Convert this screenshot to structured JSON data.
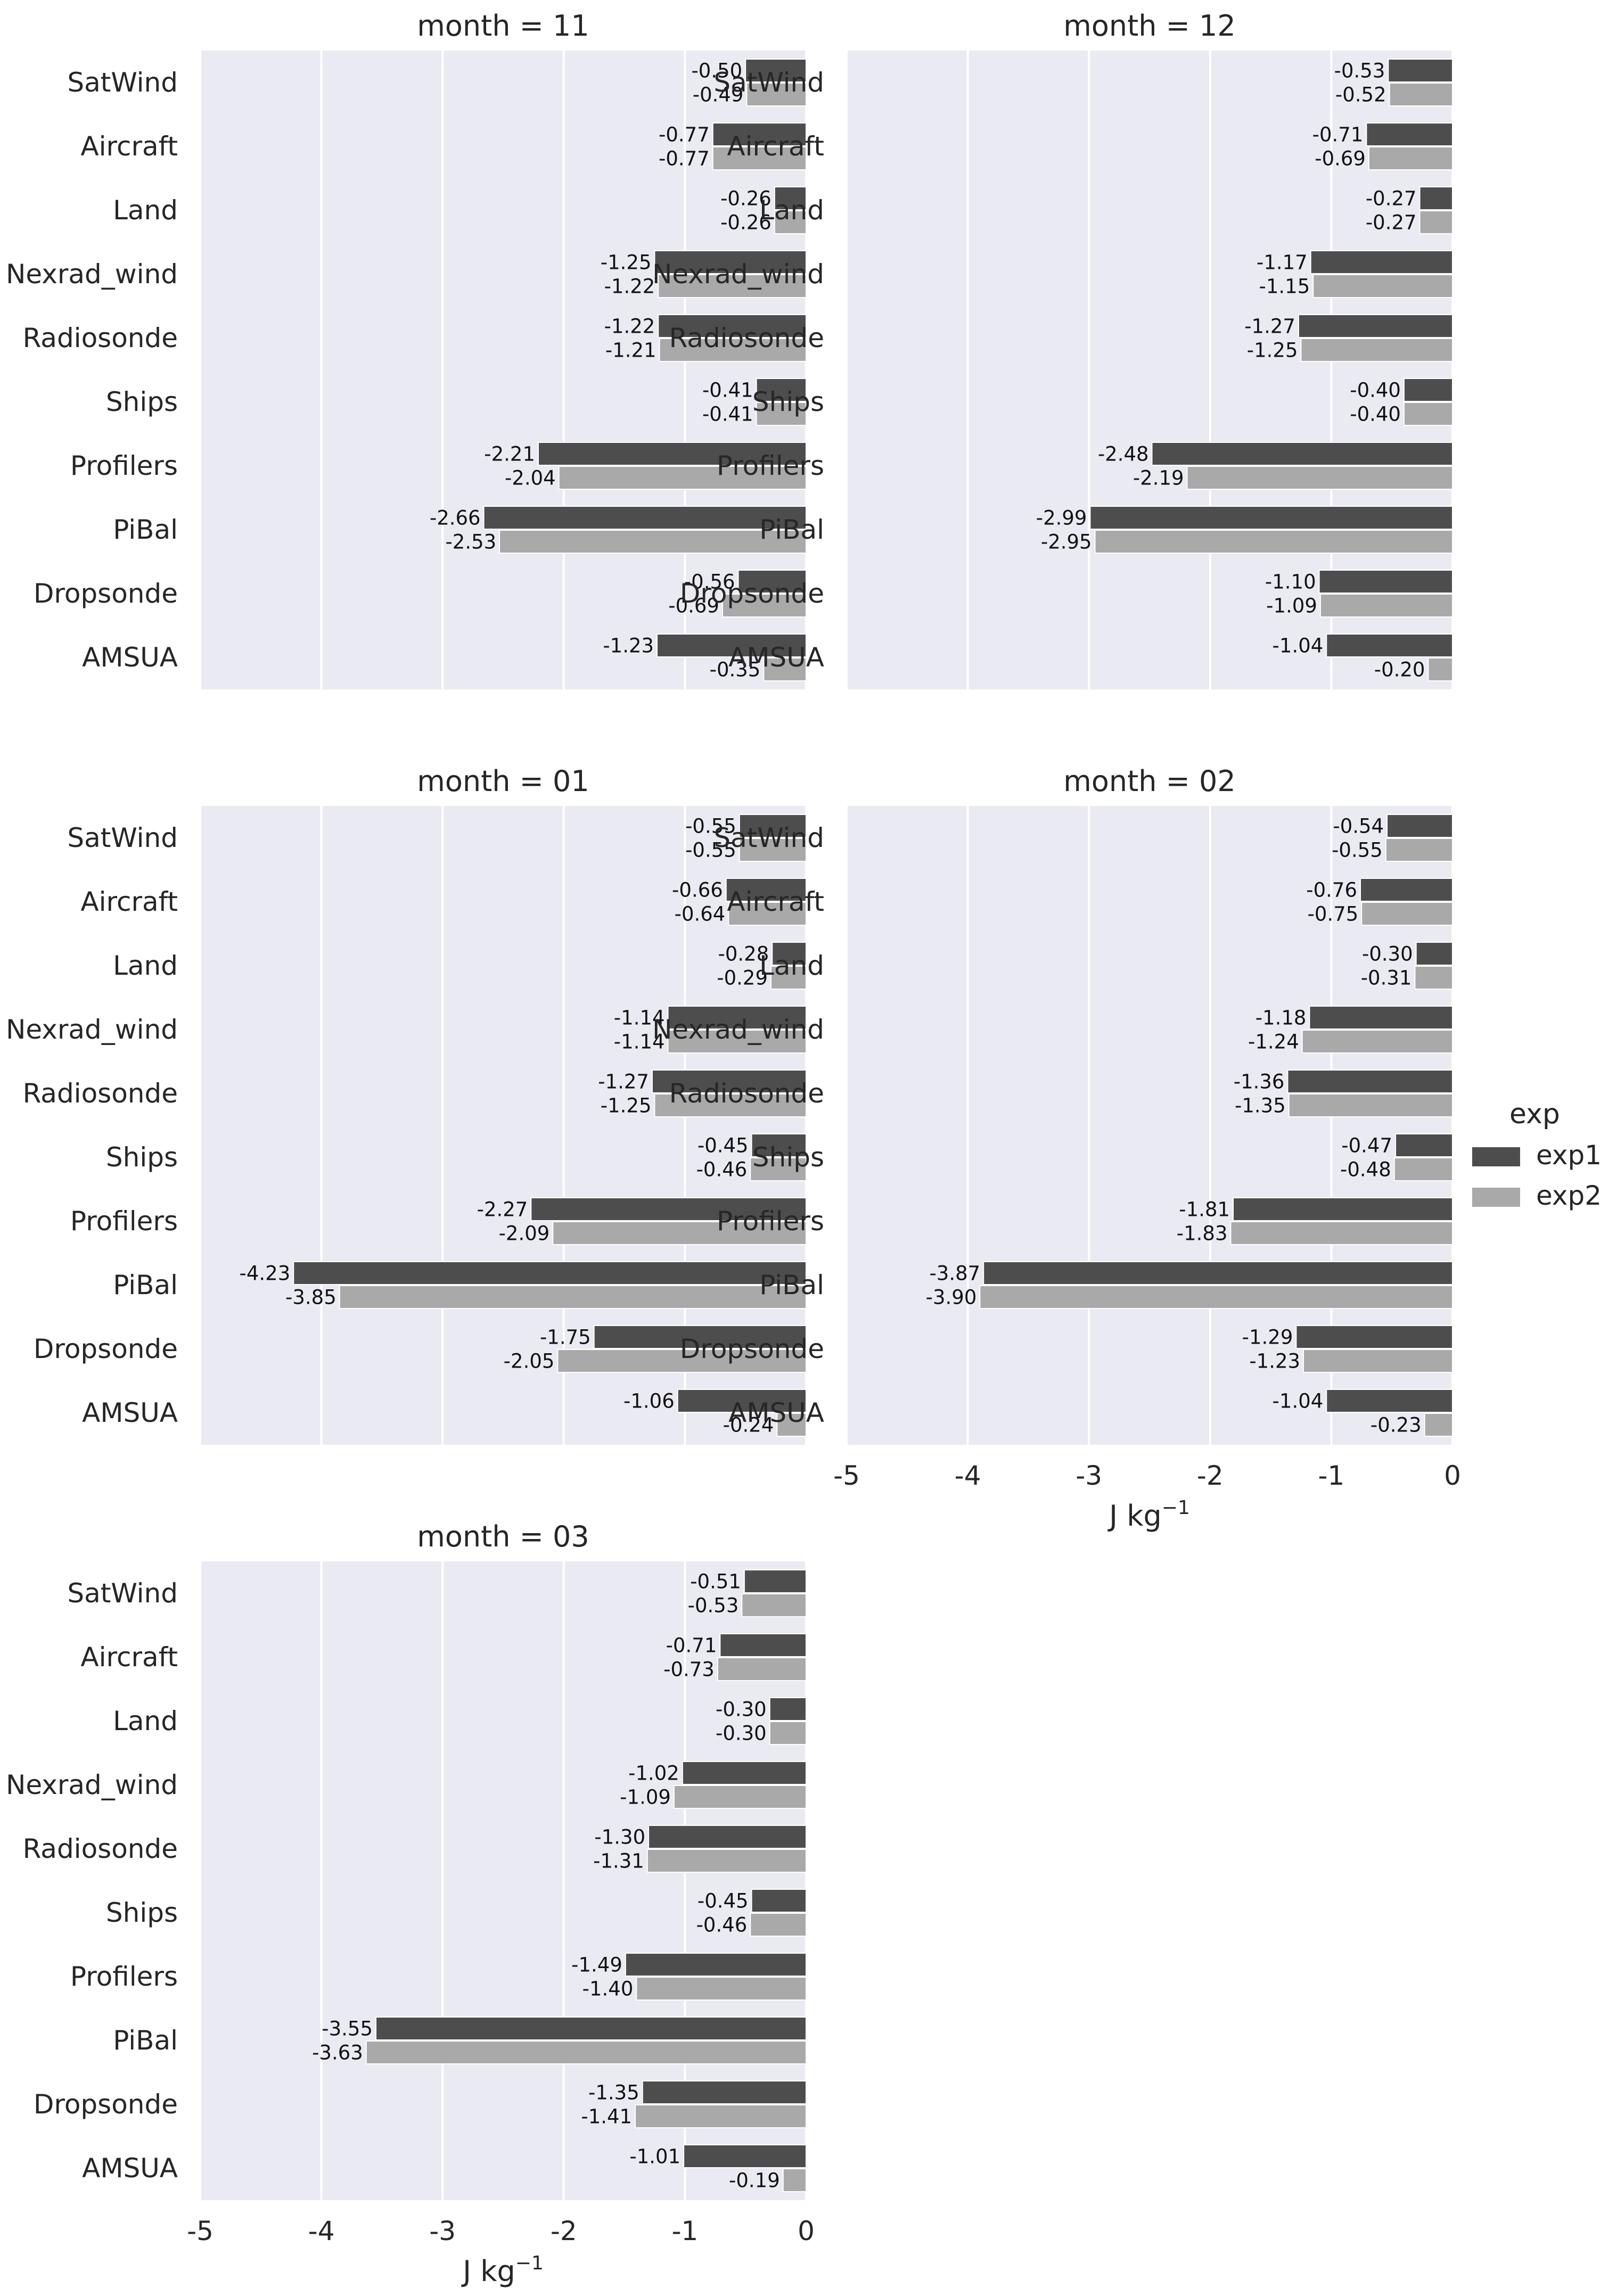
{
  "chart_data": {
    "type": "bar",
    "orientation": "horizontal",
    "categories": [
      "SatWind",
      "Aircraft",
      "Land",
      "Nexrad_wind",
      "Radiosonde",
      "Ships",
      "Profilers",
      "PiBal",
      "Dropsonde",
      "AMSUA"
    ],
    "xlim": [
      -5,
      0
    ],
    "xticks": [
      "-5",
      "-4",
      "-3",
      "-2",
      "-1",
      "0"
    ],
    "xlabel_main": "J kg",
    "xlabel_sup": "−1",
    "grid": true,
    "legend": {
      "title": "exp",
      "placement": "right",
      "entries": [
        {
          "name": "exp1",
          "color": "#4d4d4d"
        },
        {
          "name": "exp2",
          "color": "#a9a9a9"
        }
      ]
    },
    "facets": [
      {
        "title": "month = 11",
        "show_xaxis": false,
        "series": [
          {
            "name": "exp1",
            "values": [
              -0.5,
              -0.77,
              -0.26,
              -1.25,
              -1.22,
              -0.41,
              -2.21,
              -2.66,
              -0.56,
              -1.23
            ]
          },
          {
            "name": "exp2",
            "values": [
              -0.49,
              -0.77,
              -0.26,
              -1.22,
              -1.21,
              -0.41,
              -2.04,
              -2.53,
              -0.69,
              -0.35
            ]
          }
        ]
      },
      {
        "title": "month = 12",
        "show_xaxis": false,
        "series": [
          {
            "name": "exp1",
            "values": [
              -0.53,
              -0.71,
              -0.27,
              -1.17,
              -1.27,
              -0.4,
              -2.48,
              -2.99,
              -1.1,
              -1.04
            ]
          },
          {
            "name": "exp2",
            "values": [
              -0.52,
              -0.69,
              -0.27,
              -1.15,
              -1.25,
              -0.4,
              -2.19,
              -2.95,
              -1.09,
              -0.2
            ]
          }
        ]
      },
      {
        "title": "month = 01",
        "show_xaxis": false,
        "series": [
          {
            "name": "exp1",
            "values": [
              -0.55,
              -0.66,
              -0.28,
              -1.14,
              -1.27,
              -0.45,
              -2.27,
              -4.23,
              -1.75,
              -1.06
            ]
          },
          {
            "name": "exp2",
            "values": [
              -0.55,
              -0.64,
              -0.29,
              -1.14,
              -1.25,
              -0.46,
              -2.09,
              -3.85,
              -2.05,
              -0.24
            ]
          }
        ]
      },
      {
        "title": "month = 02",
        "show_xaxis": true,
        "series": [
          {
            "name": "exp1",
            "values": [
              -0.54,
              -0.76,
              -0.3,
              -1.18,
              -1.36,
              -0.47,
              -1.81,
              -3.87,
              -1.29,
              -1.04
            ]
          },
          {
            "name": "exp2",
            "values": [
              -0.55,
              -0.75,
              -0.31,
              -1.24,
              -1.35,
              -0.48,
              -1.83,
              -3.9,
              -1.23,
              -0.23
            ]
          }
        ]
      },
      {
        "title": "month = 03",
        "show_xaxis": true,
        "series": [
          {
            "name": "exp1",
            "values": [
              -0.51,
              -0.71,
              -0.3,
              -1.02,
              -1.3,
              -0.45,
              -1.49,
              -3.55,
              -1.35,
              -1.01
            ]
          },
          {
            "name": "exp2",
            "values": [
              -0.53,
              -0.73,
              -0.3,
              -1.09,
              -1.31,
              -0.46,
              -1.4,
              -3.63,
              -1.41,
              -0.19
            ]
          }
        ]
      }
    ]
  }
}
